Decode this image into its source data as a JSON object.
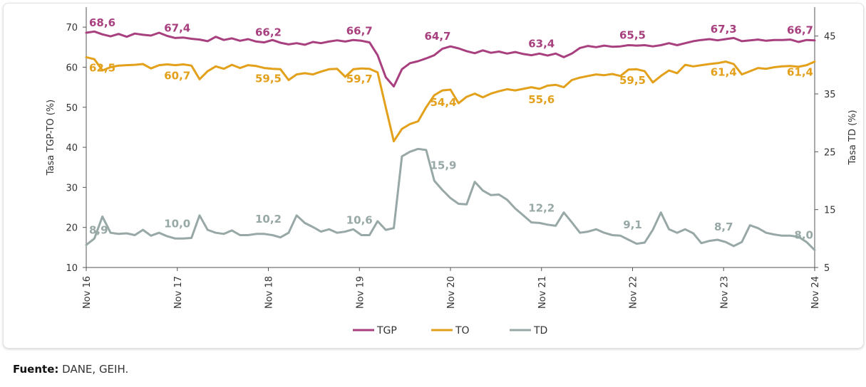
{
  "chart_data": {
    "type": "line",
    "x_labels": [
      "Nov 16",
      "Nov 17",
      "Nov 18",
      "Nov 19",
      "Nov 20",
      "Nov 21",
      "Nov 22",
      "Nov 23",
      "Nov 24"
    ],
    "y_left": {
      "label": "Tasa TGP-TO (%)",
      "range": [
        10,
        75
      ],
      "ticks": [
        10,
        20,
        30,
        40,
        50,
        60,
        70
      ]
    },
    "y_right": {
      "label": "Tasa TD (%)",
      "range": [
        5,
        50
      ],
      "ticks": [
        5,
        15,
        25,
        35,
        45
      ]
    },
    "grid": false,
    "legend_position": "bottom",
    "series": [
      {
        "name": "TGP",
        "axis": "left",
        "color": "#a8407f",
        "points": [
          [
            0,
            68.6
          ],
          [
            1,
            68.9
          ],
          [
            2,
            68.2
          ],
          [
            3,
            67.7
          ],
          [
            4,
            68.3
          ],
          [
            5,
            67.6
          ],
          [
            6,
            68.4
          ],
          [
            7,
            68.1
          ],
          [
            8,
            67.9
          ],
          [
            9,
            68.6
          ],
          [
            10,
            67.8
          ],
          [
            11,
            67.3
          ],
          [
            12,
            67.4
          ],
          [
            13,
            67.1
          ],
          [
            14,
            66.9
          ],
          [
            15,
            66.5
          ],
          [
            16,
            67.6
          ],
          [
            17,
            66.8
          ],
          [
            18,
            67.2
          ],
          [
            19,
            66.6
          ],
          [
            20,
            67.0
          ],
          [
            21,
            66.4
          ],
          [
            22,
            66.2
          ],
          [
            23,
            66.8
          ],
          [
            24,
            66.1
          ],
          [
            25,
            65.7
          ],
          [
            26,
            66.0
          ],
          [
            27,
            65.6
          ],
          [
            28,
            66.3
          ],
          [
            29,
            66.0
          ],
          [
            30,
            66.4
          ],
          [
            31,
            66.7
          ],
          [
            32,
            66.4
          ],
          [
            33,
            66.8
          ],
          [
            34,
            66.6
          ],
          [
            35,
            66.2
          ],
          [
            36,
            63.0
          ],
          [
            37,
            57.5
          ],
          [
            38,
            55.2
          ],
          [
            39,
            59.5
          ],
          [
            40,
            61.0
          ],
          [
            41,
            61.5
          ],
          [
            42,
            62.2
          ],
          [
            43,
            63.0
          ],
          [
            44,
            64.6
          ],
          [
            45,
            65.2
          ],
          [
            46,
            64.7
          ],
          [
            47,
            64.0
          ],
          [
            48,
            63.5
          ],
          [
            49,
            64.2
          ],
          [
            50,
            63.6
          ],
          [
            51,
            63.9
          ],
          [
            52,
            63.4
          ],
          [
            53,
            63.8
          ],
          [
            54,
            63.3
          ],
          [
            55,
            63.0
          ],
          [
            56,
            63.4
          ],
          [
            57,
            62.9
          ],
          [
            58,
            63.4
          ],
          [
            59,
            62.5
          ],
          [
            60,
            63.4
          ],
          [
            61,
            64.8
          ],
          [
            62,
            65.3
          ],
          [
            63,
            65.0
          ],
          [
            64,
            65.4
          ],
          [
            65,
            65.1
          ],
          [
            66,
            65.2
          ],
          [
            67,
            65.5
          ],
          [
            68,
            65.4
          ],
          [
            69,
            65.5
          ],
          [
            70,
            65.2
          ],
          [
            71,
            65.5
          ],
          [
            72,
            66.0
          ],
          [
            73,
            65.5
          ],
          [
            74,
            66.0
          ],
          [
            75,
            66.5
          ],
          [
            76,
            66.8
          ],
          [
            77,
            67.0
          ],
          [
            78,
            66.7
          ],
          [
            79,
            67.0
          ],
          [
            80,
            67.3
          ],
          [
            81,
            66.5
          ],
          [
            82,
            66.7
          ],
          [
            83,
            66.9
          ],
          [
            84,
            66.6
          ],
          [
            85,
            66.8
          ],
          [
            86,
            66.8
          ],
          [
            87,
            66.9
          ],
          [
            88,
            66.3
          ],
          [
            89,
            66.8
          ],
          [
            90,
            66.7
          ]
        ],
        "labels": [
          {
            "i": 0,
            "text": "68,6"
          },
          {
            "i": 12,
            "text": "67,4"
          },
          {
            "i": 24,
            "text": "66,2"
          },
          {
            "i": 36,
            "text": "66,7"
          },
          {
            "i": 48,
            "text": "64,7"
          },
          {
            "i": 60,
            "text": "63,4"
          },
          {
            "i": 72,
            "text": "65,5"
          },
          {
            "i": 84,
            "text": "67,3"
          },
          {
            "i": 96,
            "text": "66,7"
          }
        ]
      },
      {
        "name": "TO",
        "axis": "left",
        "color": "#e3a01b",
        "points": [
          [
            0,
            62.5
          ],
          [
            1,
            62.0
          ],
          [
            2,
            59.2
          ],
          [
            3,
            60.0
          ],
          [
            4,
            60.4
          ],
          [
            5,
            60.5
          ],
          [
            6,
            60.6
          ],
          [
            7,
            60.8
          ],
          [
            8,
            59.7
          ],
          [
            9,
            60.5
          ],
          [
            10,
            60.7
          ],
          [
            11,
            60.5
          ],
          [
            12,
            60.7
          ],
          [
            13,
            60.4
          ],
          [
            14,
            57.0
          ],
          [
            15,
            59.0
          ],
          [
            16,
            60.2
          ],
          [
            17,
            59.6
          ],
          [
            18,
            60.6
          ],
          [
            19,
            59.8
          ],
          [
            20,
            60.5
          ],
          [
            21,
            60.3
          ],
          [
            22,
            59.8
          ],
          [
            23,
            59.6
          ],
          [
            24,
            59.5
          ],
          [
            25,
            56.8
          ],
          [
            26,
            58.2
          ],
          [
            27,
            58.5
          ],
          [
            28,
            58.2
          ],
          [
            29,
            58.9
          ],
          [
            30,
            59.5
          ],
          [
            31,
            59.6
          ],
          [
            32,
            57.6
          ],
          [
            33,
            59.5
          ],
          [
            34,
            59.7
          ],
          [
            35,
            59.6
          ],
          [
            36,
            58.7
          ],
          [
            37,
            50.0
          ],
          [
            38,
            41.5
          ],
          [
            39,
            44.6
          ],
          [
            40,
            45.8
          ],
          [
            41,
            46.5
          ],
          [
            42,
            50.0
          ],
          [
            43,
            53.0
          ],
          [
            44,
            54.2
          ],
          [
            45,
            54.4
          ],
          [
            46,
            51.0
          ],
          [
            47,
            52.6
          ],
          [
            48,
            53.4
          ],
          [
            49,
            52.5
          ],
          [
            50,
            53.4
          ],
          [
            51,
            54.0
          ],
          [
            52,
            54.5
          ],
          [
            53,
            54.2
          ],
          [
            54,
            54.6
          ],
          [
            55,
            55.0
          ],
          [
            56,
            54.6
          ],
          [
            57,
            55.4
          ],
          [
            58,
            55.6
          ],
          [
            59,
            55.0
          ],
          [
            60,
            56.8
          ],
          [
            61,
            57.4
          ],
          [
            62,
            57.8
          ],
          [
            63,
            58.2
          ],
          [
            64,
            58.0
          ],
          [
            65,
            58.3
          ],
          [
            66,
            57.8
          ],
          [
            67,
            59.4
          ],
          [
            68,
            59.5
          ],
          [
            69,
            59.0
          ],
          [
            70,
            56.2
          ],
          [
            71,
            57.8
          ],
          [
            72,
            59.2
          ],
          [
            73,
            58.5
          ],
          [
            74,
            60.6
          ],
          [
            75,
            60.2
          ],
          [
            76,
            60.5
          ],
          [
            77,
            60.8
          ],
          [
            78,
            61.0
          ],
          [
            79,
            61.4
          ],
          [
            80,
            60.8
          ],
          [
            81,
            58.2
          ],
          [
            82,
            59.0
          ],
          [
            83,
            59.8
          ],
          [
            84,
            59.6
          ],
          [
            85,
            60.0
          ],
          [
            86,
            60.2
          ],
          [
            87,
            60.3
          ],
          [
            88,
            60.1
          ],
          [
            89,
            60.5
          ],
          [
            90,
            61.4
          ]
        ],
        "labels": [
          {
            "i": 0,
            "text": "62,5"
          },
          {
            "i": 12,
            "text": "60,7"
          },
          {
            "i": 24,
            "text": "59,5"
          },
          {
            "i": 36,
            "text": "59,7"
          },
          {
            "i": 48,
            "text": "54,4"
          },
          {
            "i": 60,
            "text": "55,6"
          },
          {
            "i": 72,
            "text": "59,5"
          },
          {
            "i": 84,
            "text": "61,4"
          },
          {
            "i": 96,
            "text": "61,4"
          }
        ]
      },
      {
        "name": "TD",
        "axis": "right",
        "color": "#97a8a6",
        "points": [
          [
            0,
            8.9
          ],
          [
            1,
            10.0
          ],
          [
            2,
            13.8
          ],
          [
            3,
            11.0
          ],
          [
            4,
            10.8
          ],
          [
            5,
            10.9
          ],
          [
            6,
            10.6
          ],
          [
            7,
            11.5
          ],
          [
            8,
            10.5
          ],
          [
            9,
            11.0
          ],
          [
            10,
            10.4
          ],
          [
            11,
            10.0
          ],
          [
            12,
            10.0
          ],
          [
            13,
            10.1
          ],
          [
            14,
            14.0
          ],
          [
            15,
            11.5
          ],
          [
            16,
            11.0
          ],
          [
            17,
            10.8
          ],
          [
            18,
            11.4
          ],
          [
            19,
            10.6
          ],
          [
            20,
            10.6
          ],
          [
            21,
            10.8
          ],
          [
            22,
            10.8
          ],
          [
            23,
            10.6
          ],
          [
            24,
            10.2
          ],
          [
            25,
            11.0
          ],
          [
            26,
            14.0
          ],
          [
            27,
            12.7
          ],
          [
            28,
            12.0
          ],
          [
            29,
            11.2
          ],
          [
            30,
            11.6
          ],
          [
            31,
            11.0
          ],
          [
            32,
            11.2
          ],
          [
            33,
            11.6
          ],
          [
            34,
            10.6
          ],
          [
            35,
            10.6
          ],
          [
            36,
            13.0
          ],
          [
            37,
            11.5
          ],
          [
            38,
            11.8
          ],
          [
            39,
            24.2
          ],
          [
            40,
            25.0
          ],
          [
            41,
            25.5
          ],
          [
            42,
            25.3
          ],
          [
            43,
            20.0
          ],
          [
            44,
            18.4
          ],
          [
            45,
            17.0
          ],
          [
            46,
            16.0
          ],
          [
            47,
            15.9
          ],
          [
            48,
            19.8
          ],
          [
            49,
            18.3
          ],
          [
            50,
            17.5
          ],
          [
            51,
            17.6
          ],
          [
            52,
            16.7
          ],
          [
            53,
            15.2
          ],
          [
            54,
            14.0
          ],
          [
            55,
            12.8
          ],
          [
            56,
            12.7
          ],
          [
            57,
            12.4
          ],
          [
            58,
            12.2
          ],
          [
            59,
            14.5
          ],
          [
            60,
            12.8
          ],
          [
            61,
            11.0
          ],
          [
            62,
            11.2
          ],
          [
            63,
            11.6
          ],
          [
            64,
            11.0
          ],
          [
            65,
            10.6
          ],
          [
            66,
            10.5
          ],
          [
            67,
            9.8
          ],
          [
            68,
            9.1
          ],
          [
            69,
            9.3
          ],
          [
            70,
            11.5
          ],
          [
            71,
            14.5
          ],
          [
            72,
            11.6
          ],
          [
            73,
            11.0
          ],
          [
            74,
            11.6
          ],
          [
            75,
            10.9
          ],
          [
            76,
            9.2
          ],
          [
            77,
            9.6
          ],
          [
            78,
            9.8
          ],
          [
            79,
            9.4
          ],
          [
            80,
            8.7
          ],
          [
            81,
            9.4
          ],
          [
            82,
            12.3
          ],
          [
            83,
            11.8
          ],
          [
            84,
            11.0
          ],
          [
            85,
            10.7
          ],
          [
            86,
            10.5
          ],
          [
            87,
            10.5
          ],
          [
            88,
            10.3
          ],
          [
            89,
            9.4
          ],
          [
            90,
            8.0
          ]
        ],
        "labels": [
          {
            "i": 0,
            "text": "8,9"
          },
          {
            "i": 12,
            "text": "10,0"
          },
          {
            "i": 24,
            "text": "10,2"
          },
          {
            "i": 36,
            "text": "10,6"
          },
          {
            "i": 48,
            "text": "15,9"
          },
          {
            "i": 60,
            "text": "12,2"
          },
          {
            "i": 72,
            "text": "9,1"
          },
          {
            "i": 84,
            "text": "8,7"
          },
          {
            "i": 96,
            "text": "8,0"
          }
        ]
      }
    ]
  },
  "source": {
    "label": "Fuente:",
    "text": "DANE, GEIH."
  }
}
